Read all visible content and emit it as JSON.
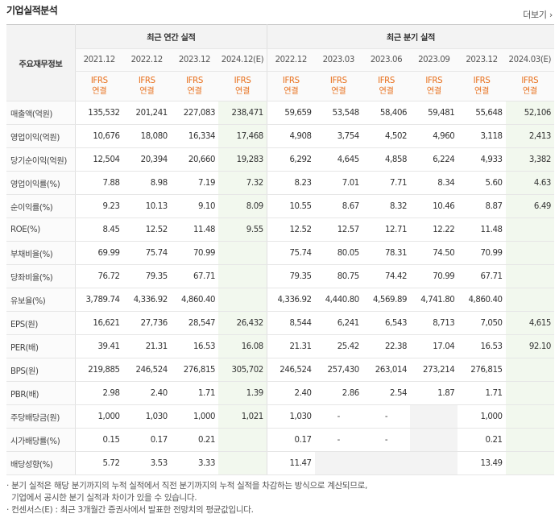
{
  "title": "기업실적분석",
  "more_label": "더보기",
  "more_icon": "chevron-right-icon",
  "row_header": "주요재무정보",
  "group_annual": "최근 연간 실적",
  "group_quarter": "최근 분기 실적",
  "periods": [
    "2021.12",
    "2022.12",
    "2023.12",
    "2024.12(E)",
    "2022.12",
    "2023.03",
    "2023.06",
    "2023.09",
    "2023.12",
    "2024.03(E)"
  ],
  "ifrs": "IFRS",
  "consolidated": "연결",
  "rows": [
    {
      "label": "매출액(억원)",
      "values": [
        "135,532",
        "201,241",
        "227,083",
        "238,471",
        "59,659",
        "53,548",
        "58,406",
        "59,481",
        "55,648",
        "52,106"
      ]
    },
    {
      "label": "영업이익(억원)",
      "values": [
        "10,676",
        "18,080",
        "16,334",
        "17,468",
        "4,908",
        "3,754",
        "4,502",
        "4,960",
        "3,118",
        "2,413"
      ]
    },
    {
      "label": "당기순이익(억원)",
      "values": [
        "12,504",
        "20,394",
        "20,660",
        "19,283",
        "6,292",
        "4,645",
        "4,858",
        "6,224",
        "4,933",
        "3,382"
      ]
    },
    {
      "label": "영업이익률(%)",
      "values": [
        "7.88",
        "8.98",
        "7.19",
        "7.32",
        "8.23",
        "7.01",
        "7.71",
        "8.34",
        "5.60",
        "4.63"
      ]
    },
    {
      "label": "순이익률(%)",
      "values": [
        "9.23",
        "10.13",
        "9.10",
        "8.09",
        "10.55",
        "8.67",
        "8.32",
        "10.46",
        "8.87",
        "6.49"
      ]
    },
    {
      "label": "ROE(%)",
      "values": [
        "8.45",
        "12.52",
        "11.48",
        "9.55",
        "12.52",
        "12.57",
        "12.71",
        "12.22",
        "11.48",
        ""
      ]
    },
    {
      "label": "부채비율(%)",
      "values": [
        "69.99",
        "75.74",
        "70.99",
        "",
        "75.74",
        "80.05",
        "78.31",
        "74.50",
        "70.99",
        ""
      ]
    },
    {
      "label": "당좌비율(%)",
      "values": [
        "76.72",
        "79.35",
        "67.71",
        "",
        "79.35",
        "80.75",
        "74.42",
        "70.99",
        "67.71",
        ""
      ]
    },
    {
      "label": "유보율(%)",
      "values": [
        "3,789.74",
        "4,336.92",
        "4,860.40",
        "",
        "4,336.92",
        "4,440.80",
        "4,569.89",
        "4,741.80",
        "4,860.40",
        ""
      ]
    },
    {
      "label": "EPS(원)",
      "values": [
        "16,621",
        "27,736",
        "28,547",
        "26,432",
        "8,544",
        "6,241",
        "6,543",
        "8,713",
        "7,050",
        "4,615"
      ]
    },
    {
      "label": "PER(배)",
      "values": [
        "39.41",
        "21.31",
        "16.53",
        "16.08",
        "21.31",
        "25.42",
        "22.38",
        "17.04",
        "16.53",
        "92.10"
      ]
    },
    {
      "label": "BPS(원)",
      "values": [
        "219,885",
        "246,524",
        "276,815",
        "305,702",
        "246,524",
        "257,430",
        "263,014",
        "273,214",
        "276,815",
        ""
      ]
    },
    {
      "label": "PBR(배)",
      "values": [
        "2.98",
        "2.40",
        "1.71",
        "1.39",
        "2.40",
        "2.86",
        "2.54",
        "1.87",
        "1.71",
        ""
      ]
    },
    {
      "label": "주당배당금(원)",
      "values": [
        "1,000",
        "1,030",
        "1,000",
        "1,021",
        "1,030",
        "-",
        "-",
        "",
        "1,000",
        ""
      ]
    },
    {
      "label": "시가배당률(%)",
      "values": [
        "0.15",
        "0.17",
        "0.21",
        "",
        "0.17",
        "-",
        "-",
        "",
        "0.21",
        ""
      ]
    },
    {
      "label": "배당성향(%)",
      "values": [
        "5.72",
        "3.53",
        "3.33",
        "",
        "11.47",
        "",
        "",
        "",
        "13.49",
        ""
      ]
    }
  ],
  "notes": [
    "· 분기 실적은 해당 분기까지의 누적 실적에서 직전 분기까지의 누적 실적을 차감하는 방식으로 계산되므로,",
    "  기업에서 공시한 분기 실적과 차이가 있을 수 있습니다.",
    "· 컨센서스(E) : 최근 3개월간 증권사에서 발표한 전망치의 평균값입니다."
  ],
  "colors": {
    "ifrs": "#e86f1b",
    "estimate_bg": "#f2f8ee",
    "header_bg": "#f3f3f3"
  }
}
